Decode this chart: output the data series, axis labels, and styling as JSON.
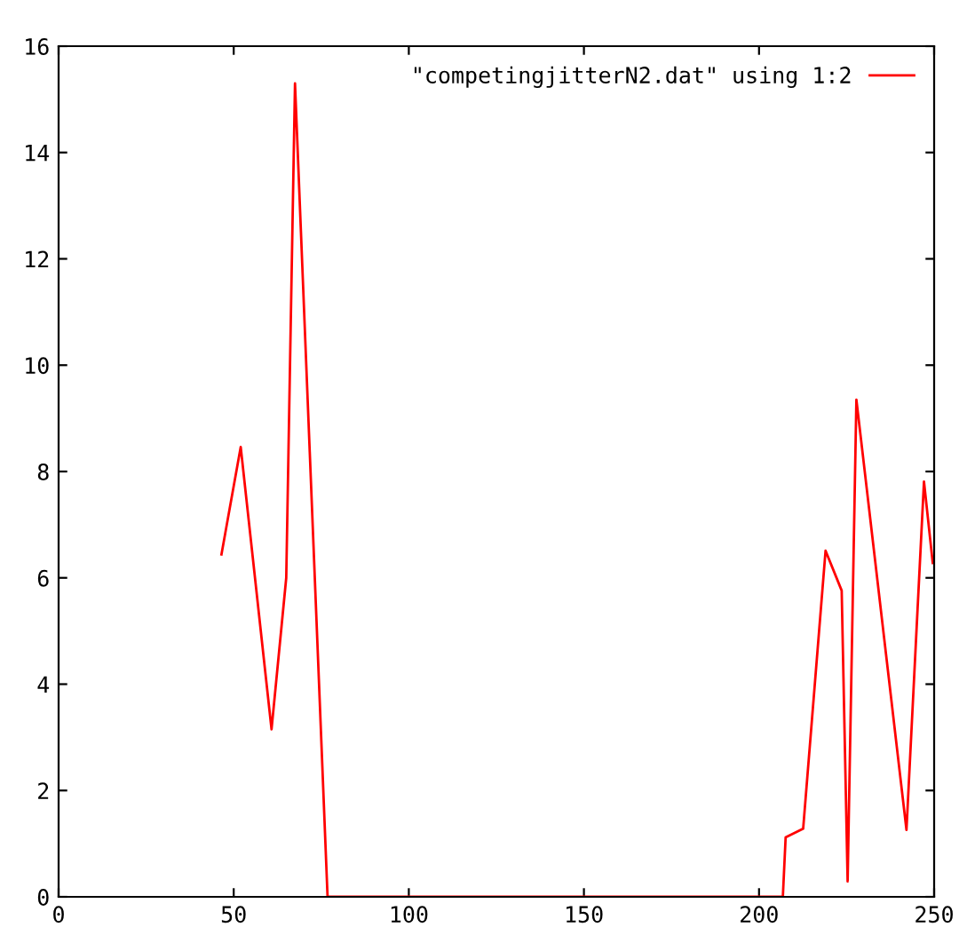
{
  "chart_data": {
    "type": "line",
    "xlim": [
      0,
      250
    ],
    "ylim": [
      0,
      16
    ],
    "xticks": [
      0,
      50,
      100,
      150,
      200,
      250
    ],
    "yticks": [
      0,
      2,
      4,
      6,
      8,
      10,
      12,
      14,
      16
    ],
    "grid": false,
    "legend": "top right",
    "marker": "none",
    "line_style": "solid",
    "series": [
      {
        "name": "\"competingjitterN2.dat\" using 1:2",
        "color": "#ff0000",
        "x": [
          46.5,
          52.0,
          60.8,
          65.0,
          67.5,
          69.2,
          76.8,
          206.8,
          207.6,
          212.6,
          219.0,
          223.6,
          225.3,
          227.8,
          242.1,
          247.1,
          249.6
        ],
        "values": [
          6.44,
          8.46,
          3.15,
          6.0,
          15.3,
          12.5,
          0,
          0,
          1.12,
          1.28,
          6.51,
          5.76,
          0.29,
          9.35,
          1.26,
          7.81,
          6.28
        ]
      }
    ]
  }
}
